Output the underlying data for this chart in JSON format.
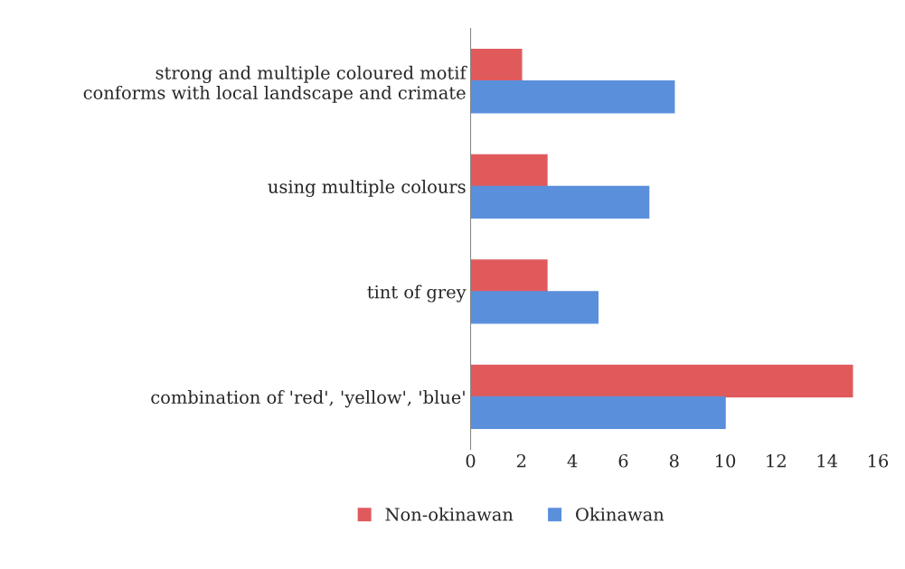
{
  "chart_data": {
    "type": "bar",
    "orientation": "horizontal",
    "categories": [
      "strong and multiple coloured motif\nconforms with local landscape and crimate",
      "using multiple colours",
      "tint of grey",
      "combination of 'red', 'yellow', 'blue'"
    ],
    "series": [
      {
        "name": "Non-okinawan",
        "color": "#e05a5c",
        "values": [
          2,
          3,
          3,
          15
        ]
      },
      {
        "name": "Okinawan",
        "color": "#5a8fdc",
        "values": [
          8,
          7,
          5,
          10
        ]
      }
    ],
    "xlim": [
      0,
      16
    ],
    "xticks": [
      0,
      2,
      4,
      6,
      8,
      10,
      12,
      14,
      16
    ],
    "grid": false,
    "legend": "bottom"
  }
}
